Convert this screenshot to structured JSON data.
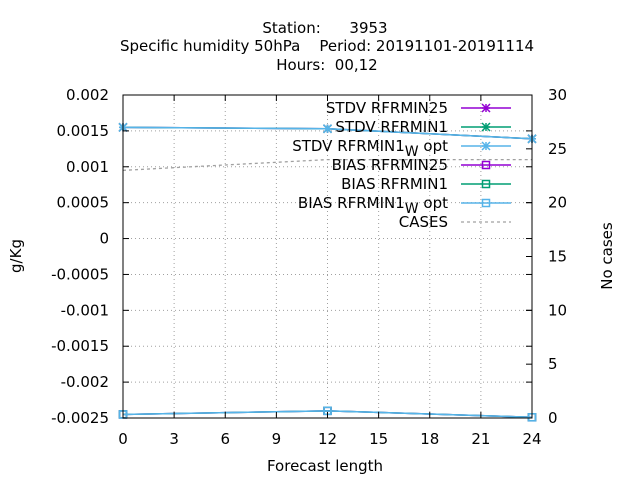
{
  "header": {
    "line1": "Station:      3953",
    "line2": "Specific humidity 50hPa    Period: 20191101-20191114",
    "line3": "Hours:  00,12"
  },
  "chart_data": {
    "type": "line",
    "xlabel": "Forecast length",
    "ylabel": "g/Kg",
    "y2label": "No cases",
    "xlim": [
      0,
      24
    ],
    "ylim": [
      -0.0025,
      0.002
    ],
    "y2lim": [
      0,
      30
    ],
    "x_ticks": [
      0,
      3,
      6,
      9,
      12,
      15,
      18,
      21,
      24
    ],
    "y_ticks": [
      0.002,
      0.0015,
      0.001,
      0.0005,
      0,
      -0.0005,
      -0.001,
      -0.0015,
      -0.002,
      -0.0025
    ],
    "y_tick_labels": [
      "0.002",
      "0.0015",
      "0.001",
      "0.0005",
      "0",
      "-0.0005",
      "-0.001",
      "-0.0015",
      "-0.002",
      "-0.0025"
    ],
    "y2_ticks": [
      0,
      5,
      10,
      15,
      20,
      25,
      30
    ],
    "grid": true,
    "legend_position": "top-right",
    "series": [
      {
        "name": "STDV RFRMIN25",
        "color": "#9400d3",
        "marker": "star",
        "axis": "y",
        "x": [
          0,
          12,
          24
        ],
        "values": [
          0.00155,
          0.00153,
          0.00139
        ]
      },
      {
        "name": "STDV RFRMIN1",
        "color": "#009e73",
        "marker": "star",
        "axis": "y",
        "x": [
          0,
          12,
          24
        ],
        "values": [
          0.00155,
          0.00153,
          0.00139
        ]
      },
      {
        "name": "STDV RFRMIN1_W opt",
        "color": "#56b4e9",
        "marker": "star",
        "axis": "y",
        "x": [
          0,
          12,
          24
        ],
        "values": [
          0.00155,
          0.00153,
          0.00139
        ]
      },
      {
        "name": "BIAS RFRMIN25",
        "color": "#9400d3",
        "marker": "square",
        "axis": "y",
        "x": [
          0,
          12,
          24
        ],
        "values": [
          -0.00245,
          -0.0024,
          -0.00249
        ]
      },
      {
        "name": "BIAS RFRMIN1",
        "color": "#009e73",
        "marker": "square",
        "axis": "y",
        "x": [
          0,
          12,
          24
        ],
        "values": [
          -0.00245,
          -0.0024,
          -0.00249
        ]
      },
      {
        "name": "BIAS RFRMIN1_W opt",
        "color": "#56b4e9",
        "marker": "square",
        "axis": "y",
        "x": [
          0,
          12,
          24
        ],
        "values": [
          -0.00245,
          -0.0024,
          -0.00249
        ]
      },
      {
        "name": "CASES",
        "color": "#a0a0a0",
        "marker": "none",
        "dashed": true,
        "axis": "y2",
        "x": [
          0,
          12,
          24
        ],
        "values": [
          23,
          24,
          24
        ]
      }
    ],
    "legend": [
      {
        "main": "STDV RFRMIN25",
        "sub": "",
        "tail": ""
      },
      {
        "main": "STDV RFRMIN1",
        "sub": "",
        "tail": ""
      },
      {
        "main": "STDV RFRMIN1",
        "sub": "W",
        "tail": " opt"
      },
      {
        "main": "BIAS RFRMIN25",
        "sub": "",
        "tail": ""
      },
      {
        "main": "BIAS RFRMIN1",
        "sub": "",
        "tail": ""
      },
      {
        "main": "BIAS RFRMIN1",
        "sub": "W",
        "tail": " opt"
      },
      {
        "main": "CASES",
        "sub": "",
        "tail": ""
      }
    ]
  }
}
